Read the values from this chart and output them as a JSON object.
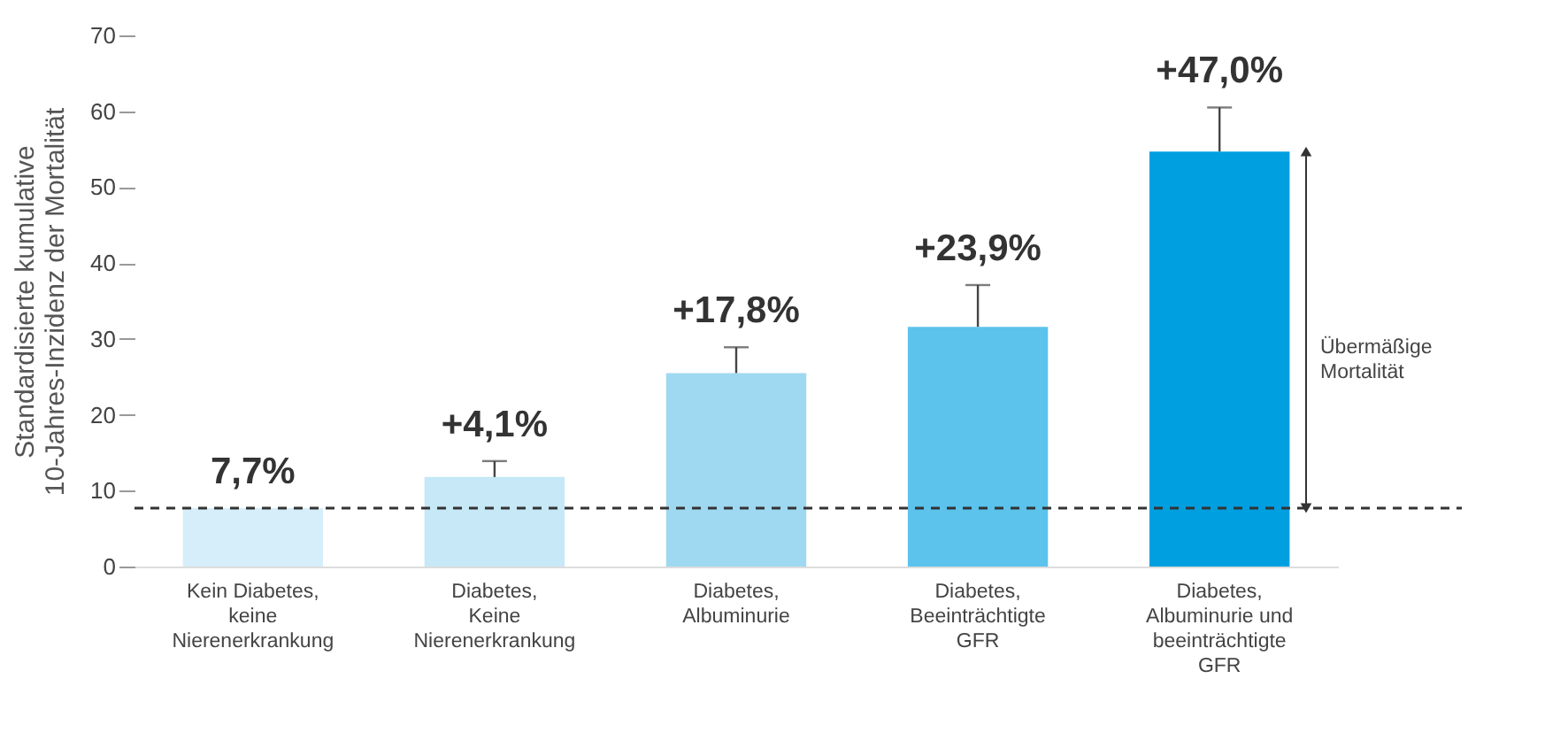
{
  "chart_data": {
    "type": "bar",
    "ylabel": "Standardisierte kumulative 10-Jahres-Inzidenz der Mortalität",
    "categories": [
      "Kein Diabetes, keine Nierenerkrankung",
      "Diabetes, Keine Nierenerkrankung",
      "Diabetes, Albuminurie",
      "Diabetes, Beeinträchtigte GFR",
      "Diabetes, Albuminurie und beeinträchtigte GFR"
    ],
    "values": [
      7.7,
      11.8,
      25.5,
      31.6,
      54.7
    ],
    "colors": [
      "#d6eef9",
      "#c6e8f7",
      "#9fd8f1",
      "#5bc3ec",
      "#009fe0"
    ],
    "errors": [
      null,
      [
        11.8,
        13.9
      ],
      [
        25.5,
        28.9
      ],
      [
        31.6,
        37.1
      ],
      [
        54.7,
        60.5
      ]
    ],
    "ylim": [
      0,
      70
    ],
    "yticks": [
      0,
      10,
      20,
      30,
      40,
      50,
      60,
      70
    ],
    "ref_lines": [
      {
        "axis": "y",
        "value": 7.7,
        "line_style": "dashed",
        "color": "#333333"
      }
    ],
    "annotations": [
      {
        "text": "7,7%",
        "x": "Kein Diabetes, keine Nierenerkrankung",
        "y": 7.7
      },
      {
        "text": "+4,1%",
        "x": "Diabetes, Keine Nierenerkrankung",
        "y": 13.9
      },
      {
        "text": "+17,8%",
        "x": "Diabetes, Albuminurie",
        "y": 28.9
      },
      {
        "text": "+23,9%",
        "x": "Diabetes, Beeinträchtigte GFR",
        "y": 37.1
      },
      {
        "text": "+47,0%",
        "x": "Diabetes, Albuminurie und beeinträchtigte GFR",
        "y": 60.5
      },
      "Übermäßige Mortalität"
    ],
    "grid": false
  }
}
